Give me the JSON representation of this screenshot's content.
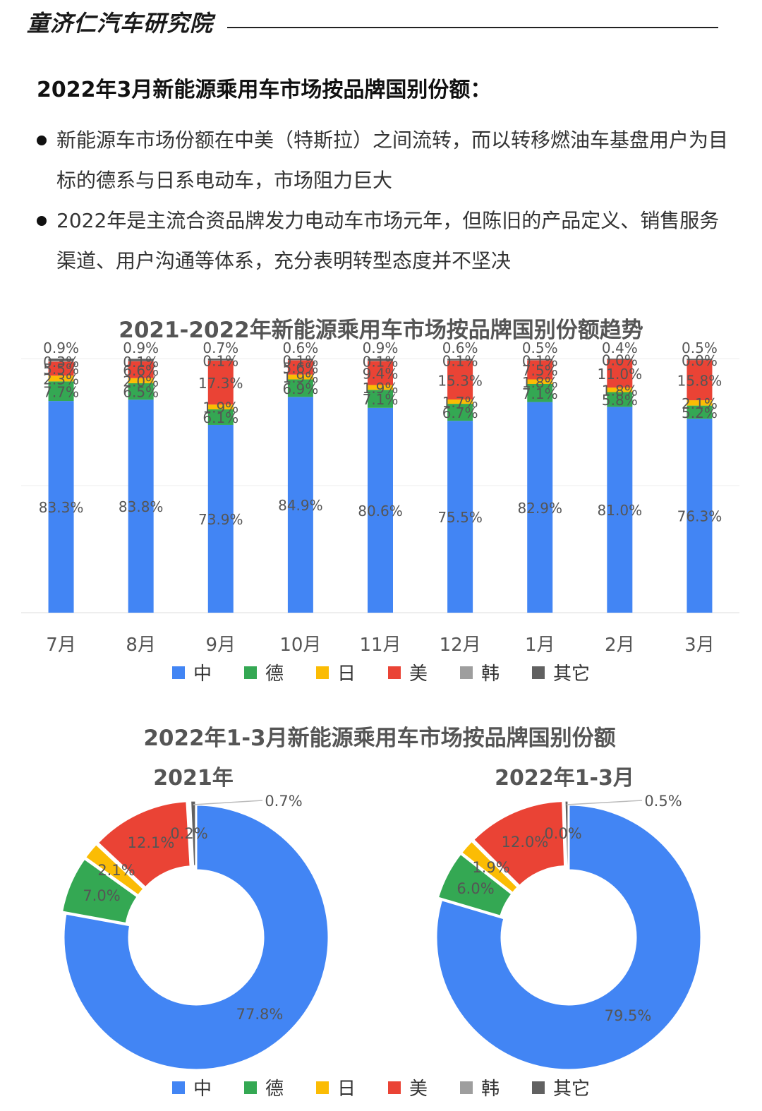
{
  "header": {
    "org_name": "童济仁汽车研究院"
  },
  "section_title": "2022年3月新能源乘用车市场按品牌国别份额：",
  "bullets": [
    "新能源车市场份额在中美（特斯拉）之间流转，而以转移燃油车基盘用户为目标的德系与日系电动车，市场阻力巨大",
    "2022年是主流合资品牌发力电动车市场元年，但陈旧的产品定义、销售服务渠道、用户沟通等体系，充分表明转型态度并不坚决"
  ],
  "legend": [
    {
      "label": "中",
      "color": "#4285F4"
    },
    {
      "label": "德",
      "color": "#34A853"
    },
    {
      "label": "日",
      "color": "#FBBC04"
    },
    {
      "label": "美",
      "color": "#EA4335"
    },
    {
      "label": "韩",
      "color": "#9E9E9E"
    },
    {
      "label": "其它",
      "color": "#616161"
    }
  ],
  "chart_data": [
    {
      "type": "bar",
      "stacked": true,
      "title": "2021-2022年新能源乘用车市场按品牌国别份额趋势",
      "categories": [
        "7月",
        "8月",
        "9月",
        "10月",
        "11月",
        "12月",
        "1月",
        "2月",
        "3月"
      ],
      "series": [
        {
          "name": "中",
          "color": "#4285F4",
          "values": [
            83.3,
            83.8,
            73.9,
            84.9,
            80.6,
            75.5,
            82.9,
            81.0,
            76.3
          ],
          "labels": [
            "83.3%",
            "83.8%",
            "73.9%",
            "84.9%",
            "80.6%",
            "75.5%",
            "82.9%",
            "81.0%",
            "76.3%"
          ]
        },
        {
          "name": "德",
          "color": "#34A853",
          "values": [
            7.7,
            6.5,
            6.1,
            6.9,
            7.1,
            6.7,
            7.1,
            5.8,
            5.2
          ],
          "labels": [
            "7.7%",
            "6.5%",
            "6.1%",
            "6.9%",
            "7.1%",
            "6.7%",
            "7.1%",
            "5.8%",
            "5.2%"
          ]
        },
        {
          "name": "日",
          "color": "#FBBC04",
          "values": [
            2.3,
            2.0,
            1.9,
            1.9,
            1.9,
            1.7,
            1.8,
            1.8,
            2.1
          ],
          "labels": [
            "2.3%",
            "2.0%",
            "1.9%",
            "1.9%",
            "1.9%",
            "1.7%",
            "1.8%",
            "1.8%",
            "2.1%"
          ]
        },
        {
          "name": "美",
          "color": "#EA4335",
          "values": [
            5.5,
            6.6,
            17.3,
            5.6,
            9.4,
            15.3,
            7.5,
            11.0,
            15.8
          ],
          "labels": [
            "5.5%",
            "6.6%",
            "17.3%",
            "5.6%",
            "9.4%",
            "15.3%",
            "7.5%",
            "11.0%",
            "15.8%"
          ]
        },
        {
          "name": "韩",
          "color": "#9E9E9E",
          "values": [
            0.3,
            0.1,
            0.1,
            0.1,
            0.1,
            0.1,
            0.1,
            0.0,
            0.0
          ],
          "labels": [
            "0.3%",
            "0.1%",
            "0.1%",
            "0.1%",
            "0.1%",
            "0.1%",
            "0.1%",
            "0.0%",
            "0.0%"
          ]
        },
        {
          "name": "其它",
          "color": "#616161",
          "values": [
            0.9,
            0.9,
            0.7,
            0.6,
            0.9,
            0.6,
            0.5,
            0.4,
            0.5
          ],
          "labels": [
            "0.9%",
            "0.9%",
            "0.7%",
            "0.6%",
            "0.9%",
            "0.6%",
            "0.5%",
            "0.4%",
            "0.5%"
          ]
        }
      ],
      "ylim": [
        0,
        100
      ],
      "grid": true,
      "legend_position": "bottom"
    },
    {
      "type": "pie",
      "donut": true,
      "title": "2022年1-3月新能源乘用车市场按品牌国别份额",
      "subtitle": "2021年",
      "categories": [
        "中",
        "德",
        "日",
        "美",
        "韩",
        "其它"
      ],
      "values": [
        77.8,
        7.0,
        2.1,
        12.1,
        0.2,
        0.7
      ],
      "labels": [
        "77.8%",
        "7.0%",
        "2.1%",
        "12.1%",
        "0.2%",
        "0.7%"
      ],
      "colors": [
        "#4285F4",
        "#34A853",
        "#FBBC04",
        "#EA4335",
        "#9E9E9E",
        "#616161"
      ],
      "legend_position": "bottom"
    },
    {
      "type": "pie",
      "donut": true,
      "subtitle": "2022年1-3月",
      "categories": [
        "中",
        "德",
        "日",
        "美",
        "韩",
        "其它"
      ],
      "values": [
        79.5,
        6.0,
        1.9,
        12.0,
        0.0,
        0.5
      ],
      "labels": [
        "79.5%",
        "6.0%",
        "1.9%",
        "12.0%",
        "0.0%",
        "0.5%"
      ],
      "colors": [
        "#4285F4",
        "#34A853",
        "#FBBC04",
        "#EA4335",
        "#9E9E9E",
        "#616161"
      ],
      "legend_position": "bottom"
    }
  ]
}
